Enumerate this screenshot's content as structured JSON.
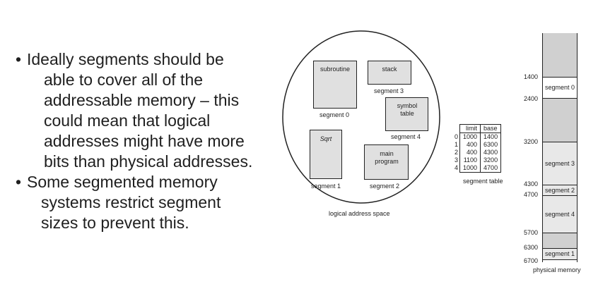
{
  "bullets": [
    {
      "marker": "•",
      "lines": [
        "Ideally segments should be",
        "able to cover all of the",
        "addressable memory – this",
        "could mean that logical",
        "addresses might have more",
        "bits than physical addresses."
      ]
    },
    {
      "marker": "•",
      "lines": [
        "Some segmented memory",
        "systems restrict segment",
        "sizes to prevent this."
      ]
    }
  ],
  "logical": {
    "caption": "logical address space",
    "boxes": [
      {
        "label": "subroutine",
        "caption": "segment 0"
      },
      {
        "label": "stack",
        "caption": "segment 3"
      },
      {
        "label": "symbol table",
        "caption": "segment 4"
      },
      {
        "label": "Sqrt",
        "caption": "segment 1"
      },
      {
        "label": "main program",
        "caption": "segment 2"
      }
    ]
  },
  "segment_table": {
    "caption": "segment table",
    "headers": [
      "limit",
      "base"
    ],
    "rows": [
      {
        "index": "0",
        "limit": "1000",
        "base": "1400"
      },
      {
        "index": "1",
        "limit": "400",
        "base": "6300"
      },
      {
        "index": "2",
        "limit": "400",
        "base": "4300"
      },
      {
        "index": "3",
        "limit": "1100",
        "base": "3200"
      },
      {
        "index": "4",
        "limit": "1000",
        "base": "4700"
      }
    ]
  },
  "physical": {
    "caption": "physical memory",
    "segments": [
      "segment 0",
      "segment 3",
      "segment 2",
      "segment 4",
      "segment 1"
    ],
    "addresses": [
      "1400",
      "2400",
      "3200",
      "4300",
      "4700",
      "5700",
      "6300",
      "6700"
    ]
  },
  "colors": {
    "segment_fill": "#e0e0e0",
    "free_fill": "#d0d0d0",
    "line": "#222222"
  }
}
